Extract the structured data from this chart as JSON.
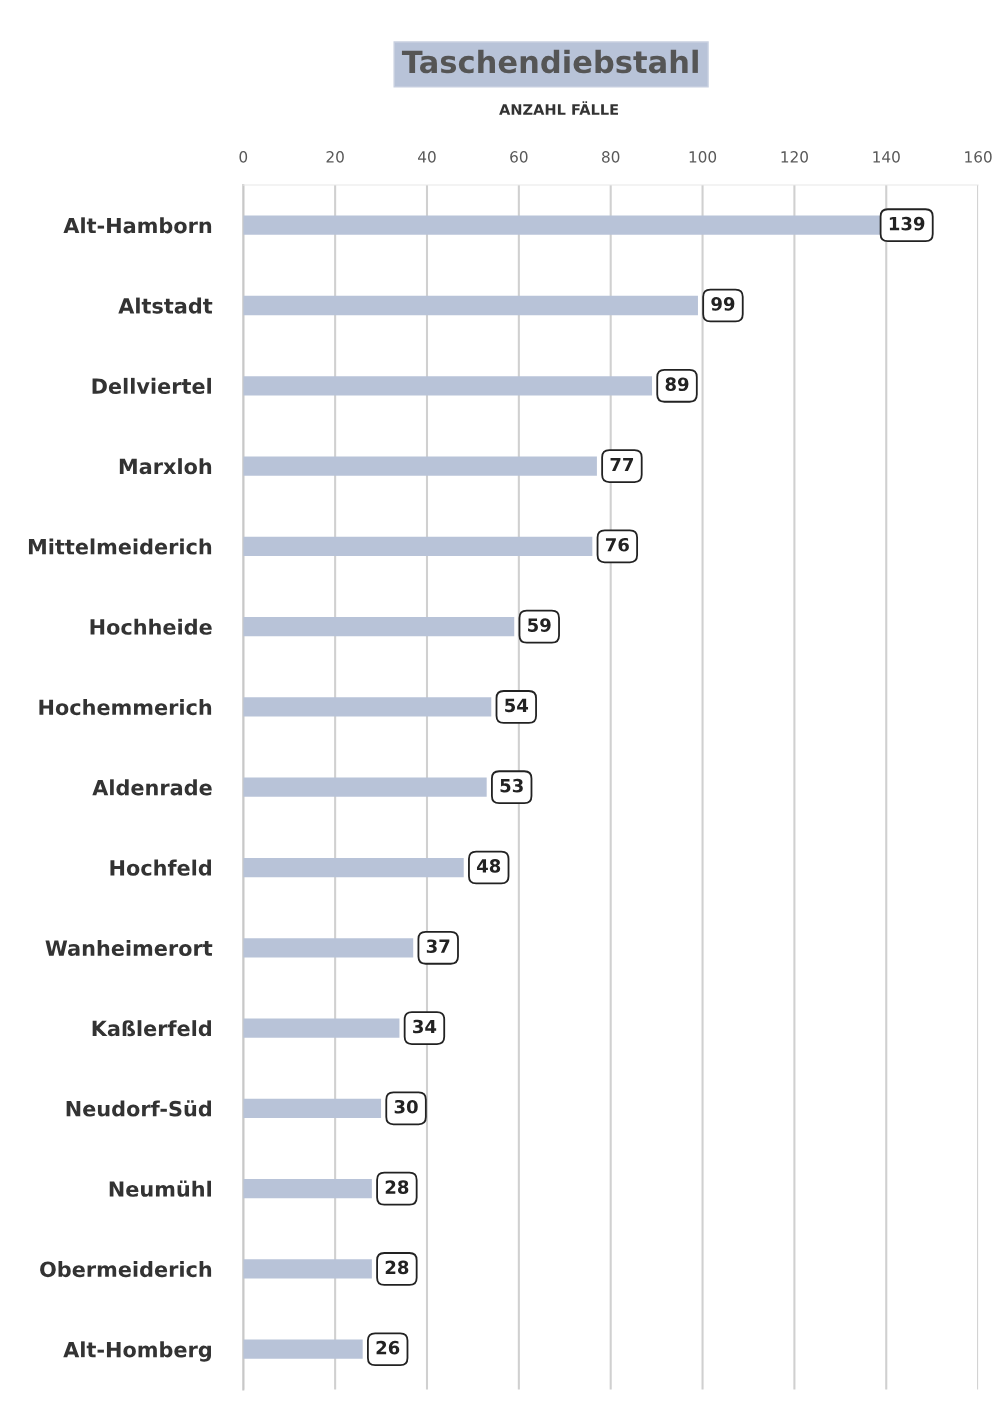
{
  "chart_data": {
    "type": "bar",
    "orientation": "horizontal",
    "title": "Taschendiebstahl",
    "subtitle": "ANZAHL FÄLLE",
    "categories": [
      "Alt-Hamborn",
      "Altstadt",
      "Dellviertel",
      "Marxloh",
      "Mittelmeiderich",
      "Hochheide",
      "Hochemmerich",
      "Aldenrade",
      "Hochfeld",
      "Wanheimerort",
      "Kaßlerfeld",
      "Neudorf-Süd",
      "Neumühl",
      "Obermeiderich",
      "Alt-Homberg"
    ],
    "values": [
      139,
      99,
      89,
      77,
      76,
      59,
      54,
      53,
      48,
      37,
      34,
      30,
      28,
      28,
      26
    ],
    "color": "#b8c3d8",
    "xlim": [
      0,
      160
    ],
    "xticks": [
      0,
      20,
      40,
      60,
      80,
      100,
      120,
      140,
      160
    ],
    "grid": "x",
    "data_labels": true
  }
}
